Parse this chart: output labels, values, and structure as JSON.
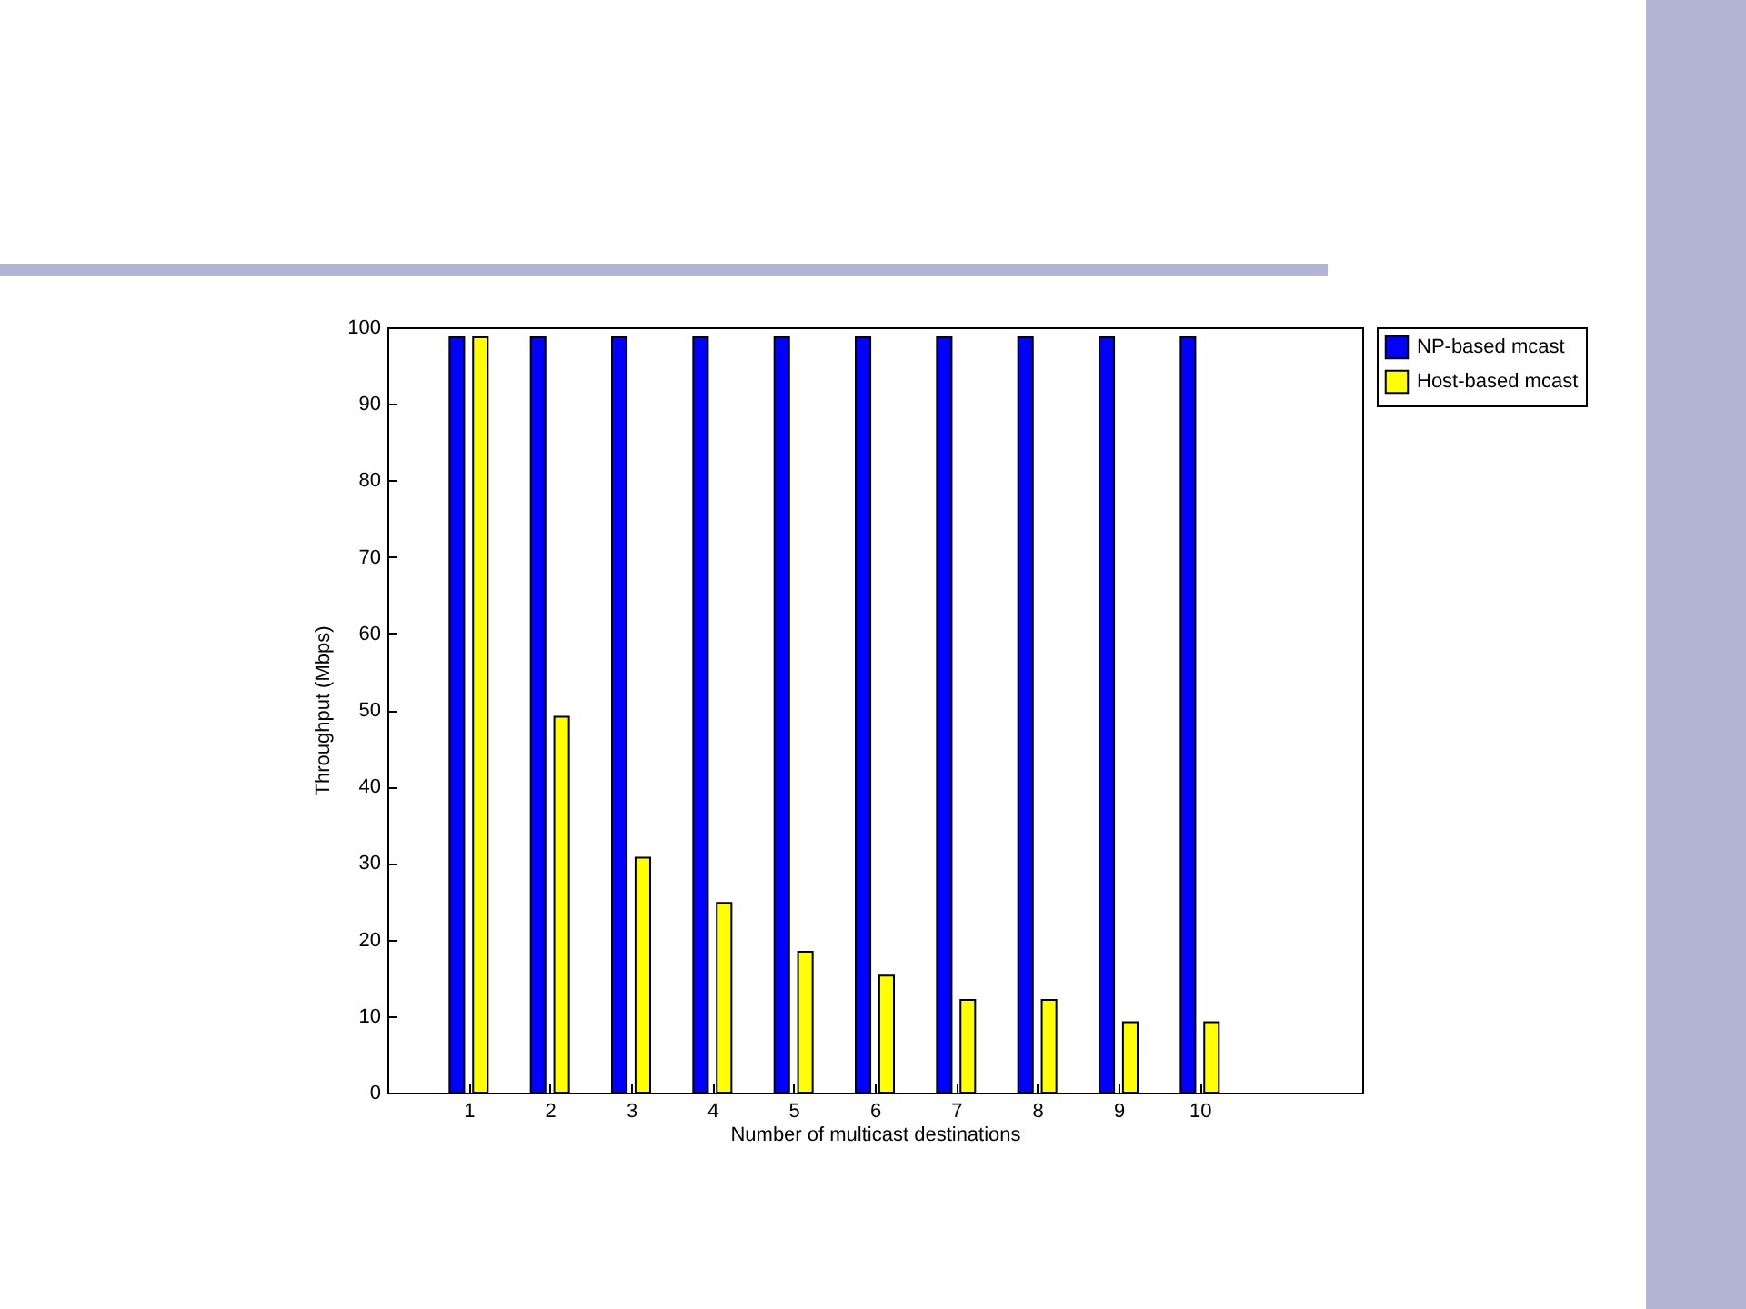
{
  "chart_data": {
    "type": "bar",
    "xlabel": "Number of multicast destinations",
    "ylabel": "Throughput (Mbps)",
    "x": [
      1,
      2,
      3,
      4,
      5,
      6,
      7,
      8,
      9,
      10
    ],
    "xlim": [
      0,
      12
    ],
    "xticks": [
      1,
      2,
      3,
      4,
      5,
      6,
      7,
      8,
      9,
      10
    ],
    "ylim": [
      0,
      100
    ],
    "yticks": [
      0,
      10,
      20,
      30,
      40,
      50,
      60,
      70,
      80,
      90,
      100
    ],
    "series": [
      {
        "name": "NP-based mcast",
        "color": "#0000ff",
        "values": [
          98.7,
          98.7,
          98.7,
          98.7,
          98.7,
          98.7,
          98.7,
          98.7,
          98.7,
          98.7
        ]
      },
      {
        "name": "Host-based mcast",
        "color": "#ffff00",
        "values": [
          98.7,
          49.1,
          30.7,
          24.8,
          18.4,
          15.3,
          12.1,
          12.1,
          9.2,
          9.2
        ]
      }
    ],
    "legend": "top right",
    "grid": false
  }
}
